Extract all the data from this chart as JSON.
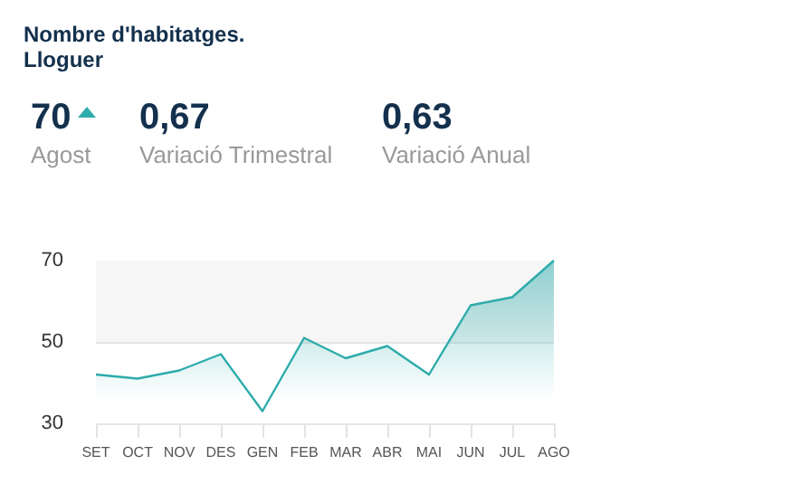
{
  "chart_data": {
    "type": "area",
    "title": "Nombre d'habitatges.\nLloguer",
    "annotations": [
      "70",
      "Agost",
      "0,67",
      "Variació Trimestral",
      "0,63",
      "Variació Anual"
    ],
    "categories": [
      "SET",
      "OCT",
      "NOV",
      "DES",
      "GEN",
      "FEB",
      "MAR",
      "ABR",
      "MAI",
      "JUN",
      "JUL",
      "AGO"
    ],
    "series": [
      {
        "color": "#2eabab",
        "values": [
          42,
          41,
          43,
          47,
          33,
          51,
          46,
          49,
          42,
          59,
          61,
          70
        ]
      }
    ],
    "ylim": [
      30,
      70
    ],
    "yticks": [
      30,
      50,
      70
    ],
    "grid": "y",
    "marker": "none",
    "line_style": "solid",
    "bands": [
      {
        "axis": "y",
        "from": 50,
        "to": 70,
        "color": "#f6f6f6"
      }
    ]
  }
}
